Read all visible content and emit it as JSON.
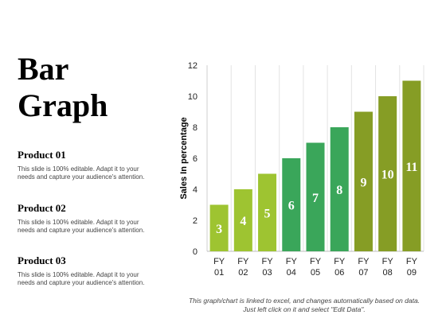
{
  "title": {
    "line1": "Bar",
    "line2": "Graph"
  },
  "products": [
    {
      "name": "Product 01",
      "desc": "This slide is 100% editable. Adapt it to your needs and capture your audience's attention."
    },
    {
      "name": "Product 02",
      "desc": "This slide is 100% editable. Adapt it to your needs and capture your audience's attention."
    },
    {
      "name": "Product 03",
      "desc": "This slide is 100% editable. Adapt it to your needs and capture your audience's attention."
    }
  ],
  "footnote": "This graph/chart is linked to excel, and changes automatically based on data. Just left click on it and select \"Edit Data\".",
  "chart_data": {
    "type": "bar",
    "categories": [
      [
        "FY",
        "01"
      ],
      [
        "FY",
        "02"
      ],
      [
        "FY",
        "03"
      ],
      [
        "FY",
        "04"
      ],
      [
        "FY",
        "05"
      ],
      [
        "FY",
        "06"
      ],
      [
        "FY",
        "07"
      ],
      [
        "FY",
        "08"
      ],
      [
        "FY",
        "09"
      ]
    ],
    "values": [
      3,
      4,
      5,
      6,
      7,
      8,
      9,
      10,
      11
    ],
    "data_labels": [
      "3",
      "4",
      "5",
      "6",
      "7",
      "8",
      "9",
      "10",
      "11"
    ],
    "colors": [
      "#9ec431",
      "#9ec431",
      "#9ec431",
      "#3aa65a",
      "#3aa65a",
      "#3aa65a",
      "#869d25",
      "#869d25",
      "#869d25"
    ],
    "ylabel": "Sales In percentage",
    "ylim": [
      0,
      12
    ],
    "yticks": [
      0,
      2,
      4,
      6,
      8,
      10,
      12
    ],
    "ytick_labels": [
      "0",
      "2",
      "4",
      "6",
      "8",
      "10",
      "12"
    ],
    "grid": "vertical"
  }
}
